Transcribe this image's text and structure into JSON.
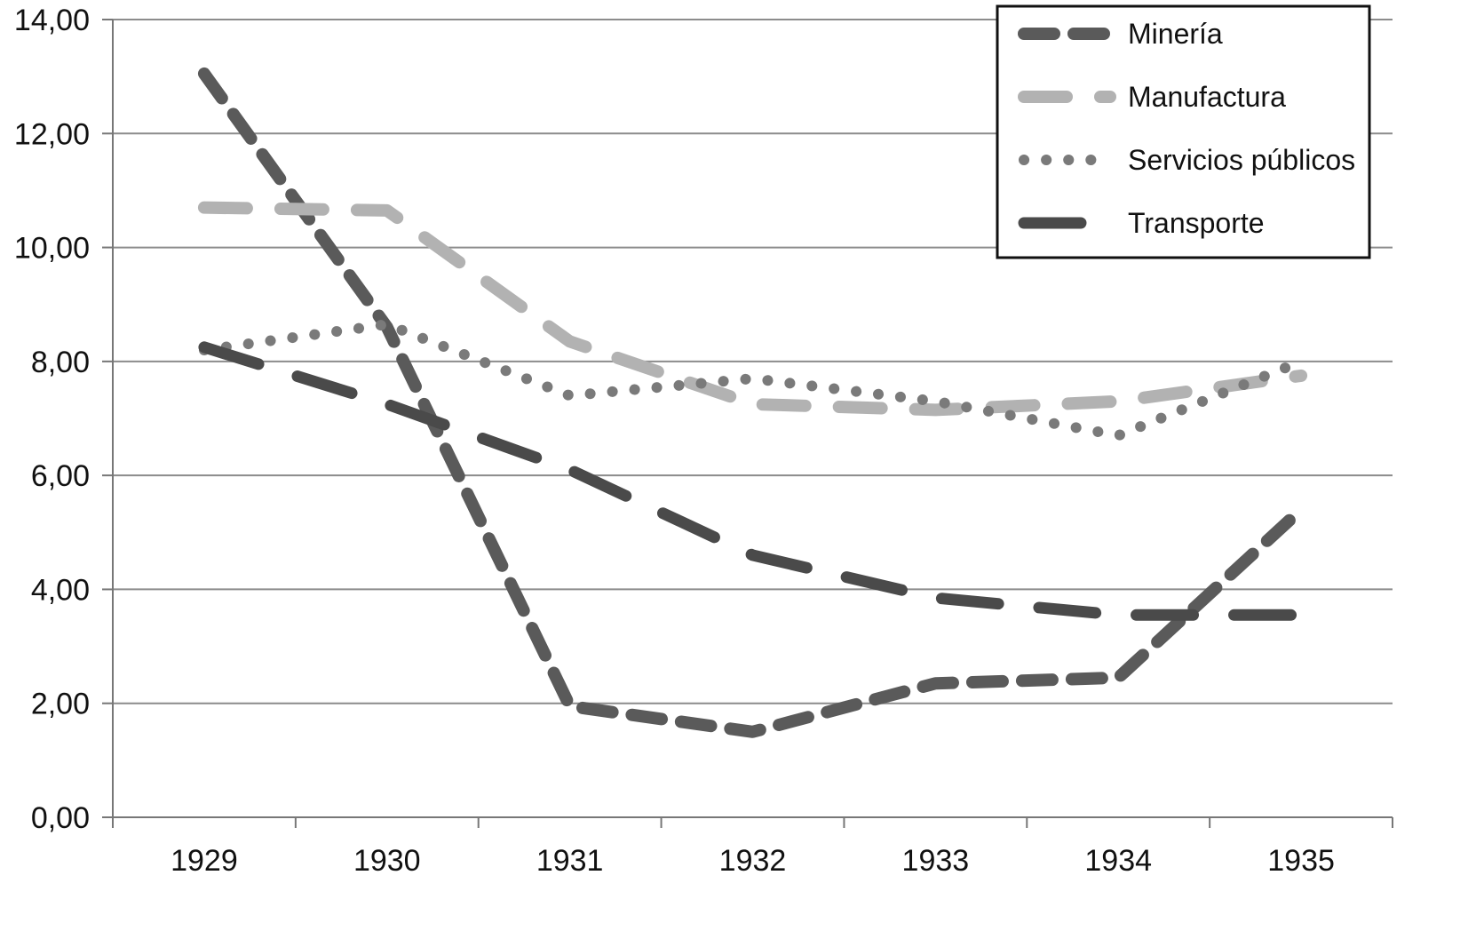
{
  "chart_data": {
    "type": "line",
    "x": [
      "1929",
      "1930",
      "1931",
      "1932",
      "1933",
      "1934",
      "1935"
    ],
    "ylim": [
      0,
      14
    ],
    "yticks": [
      "0,00",
      "2,00",
      "4,00",
      "6,00",
      "8,00",
      "10,00",
      "12,00",
      "14,00"
    ],
    "ytick_values": [
      0,
      2,
      4,
      6,
      8,
      10,
      12,
      14
    ],
    "grid": "horizontal",
    "legend_position": "top-right",
    "series": [
      {
        "name": "Minería",
        "values": [
          13.05,
          8.6,
          1.95,
          1.5,
          2.35,
          2.45,
          5.4
        ],
        "color": "#5a5a5a",
        "style": "dashed"
      },
      {
        "name": "Manufactura",
        "values": [
          10.7,
          10.65,
          8.35,
          7.25,
          7.15,
          7.3,
          7.75
        ],
        "color": "#b2b2b2",
        "style": "long-dash"
      },
      {
        "name": "Servicios públicos",
        "values": [
          8.2,
          8.65,
          7.4,
          7.7,
          7.3,
          6.7,
          8.0
        ],
        "color": "#7a7a7a",
        "style": "dotted"
      },
      {
        "name": "Transporte",
        "values": [
          8.25,
          7.25,
          6.1,
          4.6,
          3.85,
          3.55,
          3.55
        ],
        "color": "#4a4a4a",
        "style": "long-dash-thick"
      }
    ]
  }
}
